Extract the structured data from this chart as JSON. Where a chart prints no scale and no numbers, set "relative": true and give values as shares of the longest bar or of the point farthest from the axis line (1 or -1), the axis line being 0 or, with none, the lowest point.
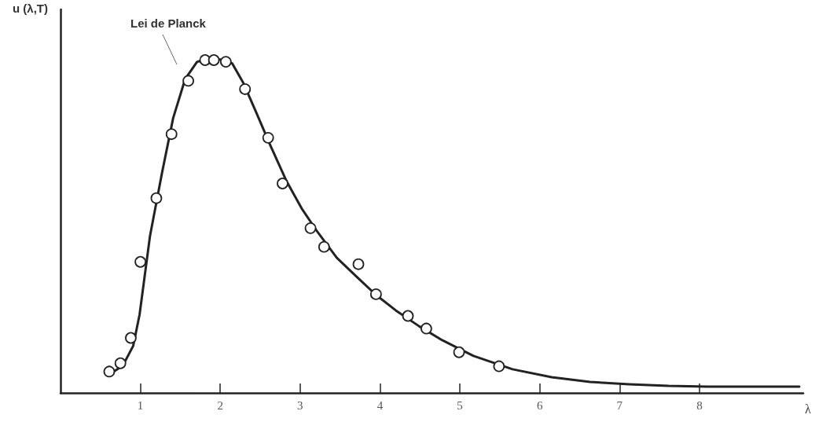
{
  "chart_data": {
    "type": "scatter",
    "relative": true,
    "xlabel": "λ",
    "ylabel": "u (λ,T)",
    "xlim": [
      0,
      9.3
    ],
    "xticks": [
      1,
      2,
      3,
      4,
      5,
      6,
      7,
      8
    ],
    "grid": false,
    "annotations": [
      "Lei de Planck"
    ],
    "series": [
      {
        "type": "line",
        "color": "#222222",
        "marker": "none",
        "line_style": "solid",
        "x": [
          0.59,
          0.78,
          0.91,
          0.99,
          1.12,
          1.27,
          1.41,
          1.56,
          1.71,
          1.83,
          2.0,
          2.15,
          2.29,
          2.44,
          2.63,
          2.83,
          3.02,
          3.22,
          3.46,
          3.71,
          3.95,
          4.2,
          4.49,
          4.78,
          5.17,
          5.66,
          6.15,
          6.63,
          7.12,
          7.61,
          8.1,
          8.59,
          9.25
        ],
        "values": [
          0.052,
          0.082,
          0.141,
          0.235,
          0.47,
          0.659,
          0.824,
          0.941,
          0.993,
          1.0,
          1.0,
          0.988,
          0.929,
          0.847,
          0.741,
          0.635,
          0.553,
          0.482,
          0.405,
          0.348,
          0.294,
          0.247,
          0.2,
          0.158,
          0.111,
          0.071,
          0.047,
          0.033,
          0.026,
          0.021,
          0.019,
          0.019,
          0.019
        ]
      },
      {
        "type": "scatter",
        "color": "#222222",
        "marker": "circle",
        "x": [
          0.61,
          0.75,
          0.88,
          1.0,
          1.2,
          1.39,
          1.6,
          1.81,
          1.92,
          2.07,
          2.31,
          2.6,
          2.78,
          3.13,
          3.3,
          3.73,
          3.95,
          4.35,
          4.58,
          4.99,
          5.49
        ],
        "values": [
          0.064,
          0.089,
          0.165,
          0.393,
          0.584,
          0.776,
          0.936,
          0.998,
          0.998,
          0.993,
          0.911,
          0.765,
          0.628,
          0.494,
          0.438,
          0.386,
          0.296,
          0.231,
          0.193,
          0.122,
          0.08
        ]
      }
    ]
  }
}
